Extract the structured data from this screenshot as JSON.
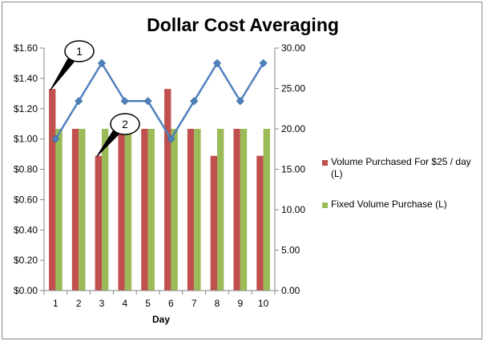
{
  "chart_data": {
    "type": "bar",
    "title": "Dollar Cost Averaging",
    "xlabel": "Day",
    "ylabel": "",
    "y2label": "",
    "categories": [
      "1",
      "2",
      "3",
      "4",
      "5",
      "6",
      "7",
      "8",
      "9",
      "10"
    ],
    "ylim": [
      0,
      1.6
    ],
    "y2lim": [
      0,
      30
    ],
    "y_ticks": [
      "$0.00",
      "$0.20",
      "$0.40",
      "$0.60",
      "$0.80",
      "$1.00",
      "$1.20",
      "$1.40",
      "$1.60"
    ],
    "y2_ticks": [
      "0.00",
      "5.00",
      "10.00",
      "15.00",
      "20.00",
      "25.00",
      "30.00"
    ],
    "series": [
      {
        "name": "Volume Purchased For $25 / day (L)",
        "kind": "bar",
        "axis": "y",
        "color": "#c0504d",
        "values": [
          1.33,
          1.067,
          0.889,
          1.067,
          1.067,
          1.33,
          1.067,
          0.889,
          1.067,
          0.889
        ]
      },
      {
        "name": "Fixed Volume Purchase (L)",
        "kind": "bar",
        "axis": "y",
        "color": "#9bbb59",
        "values": [
          1.067,
          1.067,
          1.067,
          1.067,
          1.067,
          1.067,
          1.067,
          1.067,
          1.067,
          1.067
        ]
      },
      {
        "kind": "line",
        "axis": "y2",
        "color": "#4f81bd",
        "values": [
          18.75,
          23.44,
          28.13,
          23.44,
          23.44,
          18.75,
          23.44,
          28.13,
          23.44,
          28.13
        ]
      }
    ],
    "legend_position": "right",
    "grid": false,
    "annotations": [
      {
        "label": "1",
        "target_day": "1",
        "target_series": 0
      },
      {
        "label": "2",
        "target_day": "3",
        "target_series": 0
      }
    ]
  }
}
